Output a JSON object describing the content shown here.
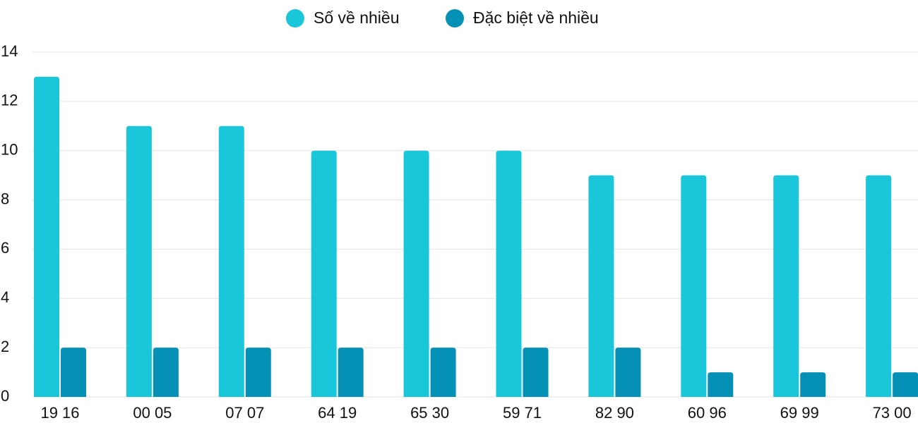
{
  "chart_data": {
    "type": "bar",
    "categories": [
      "19 16",
      "00 05",
      "07 07",
      "64 19",
      "65 30",
      "59 71",
      "82 90",
      "60 96",
      "69 99",
      "73 00"
    ],
    "series": [
      {
        "name": "Số về nhiều",
        "color": "#1ac7da",
        "values": [
          13,
          11,
          11,
          10,
          10,
          10,
          9,
          9,
          9,
          9
        ]
      },
      {
        "name": "Đặc biệt về nhiều",
        "color": "#0591b5",
        "values": [
          2,
          2,
          2,
          2,
          2,
          2,
          2,
          1,
          1,
          1
        ]
      }
    ],
    "ylim": [
      0,
      14
    ],
    "yticks": [
      0,
      2,
      4,
      6,
      8,
      10,
      12,
      14
    ],
    "grid": true,
    "legend": "top"
  }
}
